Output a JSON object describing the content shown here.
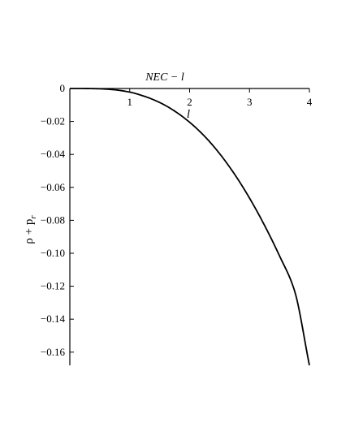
{
  "chart_data": {
    "type": "line",
    "title": "NEC − l",
    "xlabel": "l",
    "ylabel": "ρ + p",
    "ylabel_subscript": "r",
    "xlim": [
      0,
      4
    ],
    "ylim": [
      -0.168,
      0
    ],
    "x_ticks": [
      1,
      2,
      3,
      4
    ],
    "x_tick_labels": [
      "1",
      "2",
      "3",
      "4"
    ],
    "y_ticks": [
      0,
      -0.02,
      -0.04,
      -0.06,
      -0.08,
      -0.1,
      -0.12,
      -0.14,
      -0.16
    ],
    "y_tick_labels": [
      "0",
      "−0.02",
      "−0.04",
      "−0.06",
      "−0.08",
      "−0.10",
      "−0.12",
      "−0.14",
      "−0.16"
    ],
    "grid": false,
    "line_color": "#000000",
    "series": [
      {
        "x": [
          0,
          0.25,
          0.5,
          0.75,
          1.0,
          1.25,
          1.5,
          1.75,
          2.0,
          2.25,
          2.5,
          2.75,
          3.0,
          3.25,
          3.5,
          3.75,
          4.0
        ],
        "y": [
          0,
          -2e-05,
          -0.0002,
          -0.0008,
          -0.0022,
          -0.0048,
          -0.0085,
          -0.0137,
          -0.0205,
          -0.029,
          -0.0395,
          -0.052,
          -0.0665,
          -0.083,
          -0.1015,
          -0.1225,
          -0.168
        ]
      }
    ]
  }
}
